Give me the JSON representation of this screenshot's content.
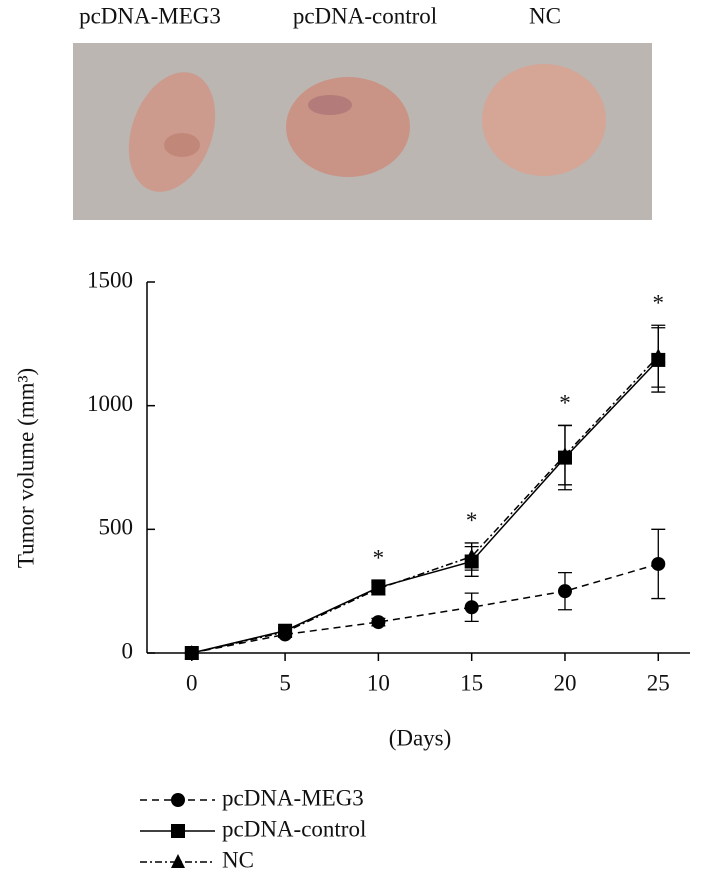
{
  "photo_labels": [
    "pcDNA-MEG3",
    "pcDNA-control",
    "NC"
  ],
  "chart_data": {
    "type": "line",
    "ylabel": "Tumor volume (mm³)",
    "xlabel": "(Days)",
    "x": [
      0,
      5,
      10,
      15,
      20,
      25
    ],
    "series": [
      {
        "name": "pcDNA-MEG3",
        "color": "#000000",
        "line_style": "dashed",
        "marker": "circle",
        "values": [
          0,
          75,
          125,
          185,
          250,
          360
        ],
        "errors": [
          0,
          10,
          15,
          57,
          75,
          140
        ]
      },
      {
        "name": "pcDNA-control",
        "color": "#000000",
        "line_style": "solid",
        "marker": "square",
        "values": [
          0,
          90,
          265,
          370,
          790,
          1185
        ],
        "errors": [
          0,
          12,
          30,
          60,
          130,
          130
        ]
      },
      {
        "name": "NC",
        "color": "#000000",
        "line_style": "dashdot",
        "marker": "triangle",
        "values": [
          0,
          85,
          260,
          390,
          800,
          1200
        ],
        "errors": [
          0,
          10,
          25,
          55,
          120,
          125
        ]
      }
    ],
    "annotations": [
      {
        "text": "*",
        "x": 10
      },
      {
        "text": "*",
        "x": 15
      },
      {
        "text": "*",
        "x": 20
      },
      {
        "text": "*",
        "x": 25
      }
    ],
    "xlim": [
      -2.4,
      26.7
    ],
    "ylim": [
      0,
      1500
    ],
    "xticks": [
      0,
      5,
      10,
      15,
      20,
      25
    ],
    "yticks": [
      0,
      500,
      1000,
      1500
    ],
    "legend": "bottom"
  }
}
